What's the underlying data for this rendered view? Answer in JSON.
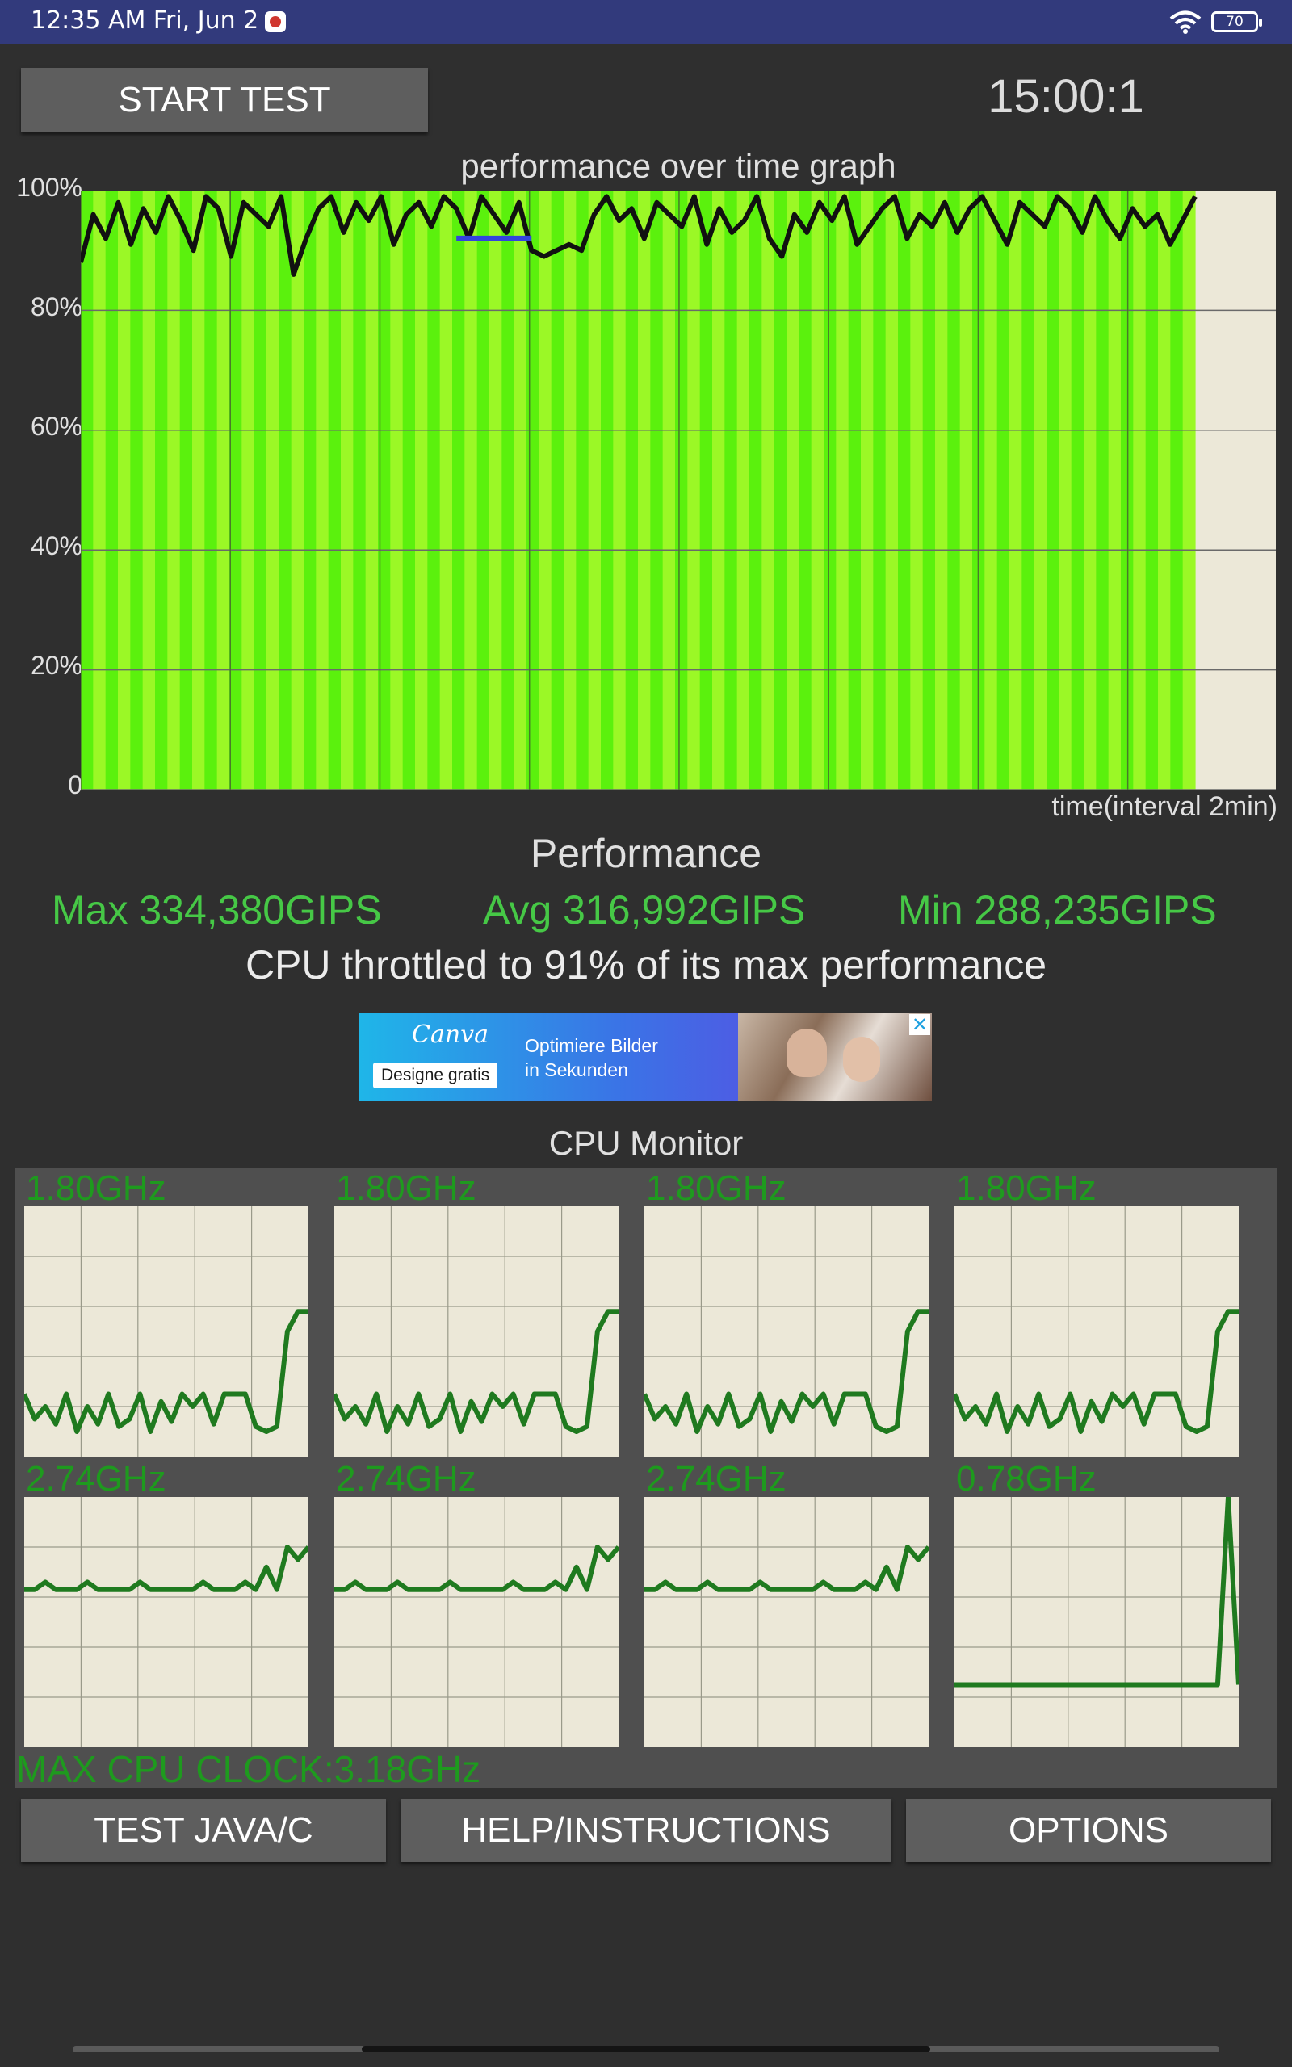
{
  "status_bar": {
    "time": "12:35 AM Fri, Jun 2",
    "battery": "70",
    "icons": [
      "screen-record-icon",
      "wifi-icon",
      "battery-icon"
    ]
  },
  "controls": {
    "start_label": "START TEST",
    "timer": "15:00:1"
  },
  "graph": {
    "title": "performance over time graph",
    "y_labels": [
      "100%",
      "80%",
      "60%",
      "40%",
      "20%",
      "0"
    ],
    "x_label": "time(interval 2min)"
  },
  "chart_data": {
    "type": "area",
    "title": "performance over time graph",
    "xlabel": "time(interval 2min)",
    "ylabel": "",
    "ylim": [
      0,
      100
    ],
    "y_ticks": [
      "100%",
      "80%",
      "60%",
      "40%",
      "20%",
      "0"
    ],
    "x": [
      0,
      1,
      2,
      3,
      4,
      5,
      6,
      7,
      8,
      9,
      10,
      11,
      12,
      13,
      14,
      15,
      16,
      17,
      18,
      19,
      20,
      21,
      22,
      23,
      24,
      25,
      26,
      27,
      28,
      29,
      30,
      31,
      32,
      33,
      34,
      35,
      36,
      37,
      38,
      39,
      40,
      41,
      42,
      43,
      44,
      45,
      46,
      47,
      48,
      49,
      50,
      51,
      52,
      53,
      54,
      55,
      56,
      57,
      58,
      59,
      60,
      61,
      62,
      63,
      64,
      65,
      66,
      67,
      68,
      69,
      70,
      71,
      72,
      73,
      74,
      75,
      76,
      77,
      78,
      79,
      80,
      81,
      82,
      83,
      84,
      85,
      86,
      87,
      88,
      89
    ],
    "series": [
      {
        "values": [
          88,
          96,
          92,
          98,
          91,
          97,
          93,
          99,
          95,
          90,
          99,
          97,
          89,
          98,
          96,
          94,
          99,
          86,
          92,
          97,
          99,
          93,
          98,
          95,
          99,
          91,
          96,
          98,
          94,
          99,
          97,
          92,
          99,
          96,
          93,
          98,
          90,
          89,
          90,
          91,
          90,
          96,
          99,
          95,
          97,
          92,
          98,
          96,
          94,
          99,
          91,
          97,
          93,
          95,
          99,
          92,
          89,
          96,
          93,
          98,
          95,
          99,
          91,
          94,
          97,
          99,
          92,
          96,
          94,
          98,
          93,
          97,
          99,
          95,
          91,
          98,
          96,
          94,
          99,
          97,
          93,
          99,
          95,
          92,
          97,
          94,
          96,
          91,
          95,
          99
        ],
        "highlight_range": [
          30,
          36
        ]
      }
    ],
    "grid": true
  },
  "performance": {
    "heading": "Performance",
    "max": "Max 334,380GIPS",
    "avg": "Avg 316,992GIPS",
    "min": "Min 288,235GIPS",
    "throttle": "CPU throttled to 91% of its max performance"
  },
  "ad": {
    "brand": "Canva",
    "cta": "Designe gratis",
    "line1": "Optimiere Bilder",
    "line2": "in Sekunden",
    "close": "✕"
  },
  "cpu_monitor": {
    "title": "CPU Monitor",
    "cores": [
      {
        "clock": "1.80GHz",
        "trace": [
          25,
          15,
          20,
          13,
          25,
          10,
          20,
          13,
          25,
          12,
          15,
          25,
          10,
          22,
          14,
          25,
          20,
          25,
          13,
          25,
          25,
          25,
          12,
          10,
          12,
          50,
          58,
          58
        ]
      },
      {
        "clock": "1.80GHz",
        "trace": [
          25,
          15,
          20,
          13,
          25,
          10,
          20,
          13,
          25,
          12,
          15,
          25,
          10,
          22,
          14,
          25,
          20,
          25,
          13,
          25,
          25,
          25,
          12,
          10,
          12,
          50,
          58,
          58
        ]
      },
      {
        "clock": "1.80GHz",
        "trace": [
          25,
          15,
          20,
          13,
          25,
          10,
          20,
          13,
          25,
          12,
          15,
          25,
          10,
          22,
          14,
          25,
          20,
          25,
          13,
          25,
          25,
          25,
          12,
          10,
          12,
          50,
          58,
          58
        ]
      },
      {
        "clock": "1.80GHz",
        "trace": [
          25,
          15,
          20,
          13,
          25,
          10,
          20,
          13,
          25,
          12,
          15,
          25,
          10,
          22,
          14,
          25,
          20,
          25,
          13,
          25,
          25,
          25,
          12,
          10,
          12,
          50,
          58,
          58
        ]
      },
      {
        "clock": "2.74GHz",
        "trace": [
          63,
          63,
          66,
          63,
          63,
          63,
          66,
          63,
          63,
          63,
          63,
          66,
          63,
          63,
          63,
          63,
          63,
          66,
          63,
          63,
          63,
          66,
          63,
          72,
          63,
          80,
          75,
          80
        ]
      },
      {
        "clock": "2.74GHz",
        "trace": [
          63,
          63,
          66,
          63,
          63,
          63,
          66,
          63,
          63,
          63,
          63,
          66,
          63,
          63,
          63,
          63,
          63,
          66,
          63,
          63,
          63,
          66,
          63,
          72,
          63,
          80,
          75,
          80
        ]
      },
      {
        "clock": "2.74GHz",
        "trace": [
          63,
          63,
          66,
          63,
          63,
          63,
          66,
          63,
          63,
          63,
          63,
          66,
          63,
          63,
          63,
          63,
          63,
          66,
          63,
          63,
          63,
          66,
          63,
          72,
          63,
          80,
          75,
          80
        ]
      },
      {
        "clock": "0.78GHz",
        "trace": [
          25,
          25,
          25,
          25,
          25,
          25,
          25,
          25,
          25,
          25,
          25,
          25,
          25,
          25,
          25,
          25,
          25,
          25,
          25,
          25,
          25,
          25,
          25,
          25,
          25,
          25,
          100,
          25
        ]
      }
    ],
    "max_clock": "MAX CPU CLOCK:3.18GHz"
  },
  "bottom_buttons": {
    "java": "TEST JAVA/C",
    "help": "HELP/INSTRUCTIONS",
    "options": "OPTIONS"
  },
  "colors": {
    "background": "#2f2f2f",
    "status_bar": "#323a7c",
    "graph_bg": "#ece8d8",
    "bar_green_1": "#5bf10d",
    "bar_green_2": "#9bf826",
    "line": "#111111",
    "highlight": "#3344dd",
    "cpu_trace": "#1f7a1f",
    "stat_green": "#46c846"
  }
}
